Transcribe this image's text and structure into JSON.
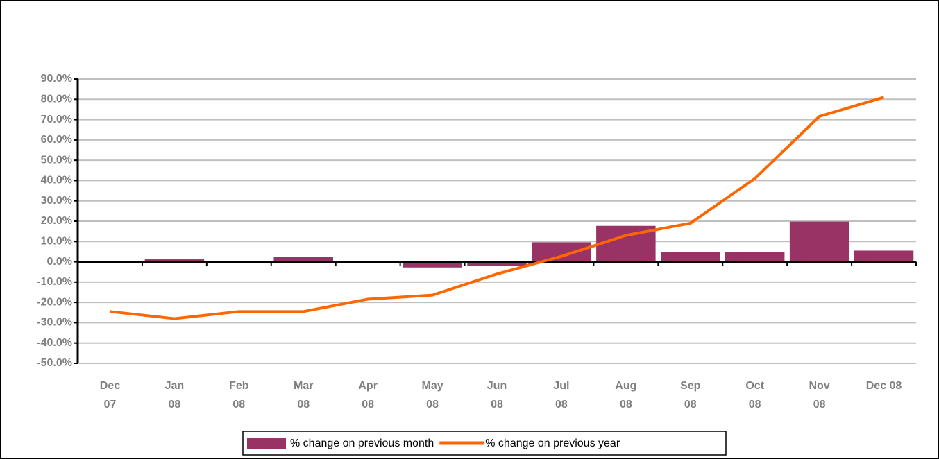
{
  "chart_data": {
    "type": "bar-line",
    "categories": [
      "Dec 07",
      "Jan 08",
      "Feb 08",
      "Mar 08",
      "Apr 08",
      "May 08",
      "Jun 08",
      "Jul 08",
      "Aug 08",
      "Sep 08",
      "Oct 08",
      "Nov 08",
      "Dec 08"
    ],
    "series": [
      {
        "name": "% change on previous month",
        "type": "bar",
        "color": "#993366",
        "values": [
          0,
          1.2,
          0,
          2.5,
          0,
          -2.8,
          -2.0,
          9.6,
          17.7,
          4.8,
          4.8,
          19.8,
          5.5
        ]
      },
      {
        "name": "% change on previous year",
        "type": "line",
        "color": "#ff6600",
        "values": [
          -24.5,
          -28,
          -24.5,
          -24.5,
          -18.4,
          -16.4,
          -6,
          2.7,
          13,
          19,
          41,
          71.6,
          81
        ]
      }
    ],
    "ylim": [
      -50,
      90
    ],
    "yticks": [
      {
        "value": -50,
        "label": "-50.0%"
      },
      {
        "value": -40,
        "label": "-40.0%"
      },
      {
        "value": -30,
        "label": "-30.0%"
      },
      {
        "value": -20,
        "label": "-20.0%"
      },
      {
        "value": -10,
        "label": "-10.0%"
      },
      {
        "value": 0,
        "label": "0.0%"
      },
      {
        "value": 10,
        "label": "10.0%"
      },
      {
        "value": 20,
        "label": "20.0%"
      },
      {
        "value": 30,
        "label": "30.0%"
      },
      {
        "value": 40,
        "label": "40.0%"
      },
      {
        "value": 50,
        "label": "50.0%"
      },
      {
        "value": 60,
        "label": "60.0%"
      },
      {
        "value": 70,
        "label": "70.0%"
      },
      {
        "value": 80,
        "label": "80.0%"
      },
      {
        "value": 90,
        "label": "90.0%"
      }
    ],
    "grid": true,
    "legend": "bottom"
  }
}
